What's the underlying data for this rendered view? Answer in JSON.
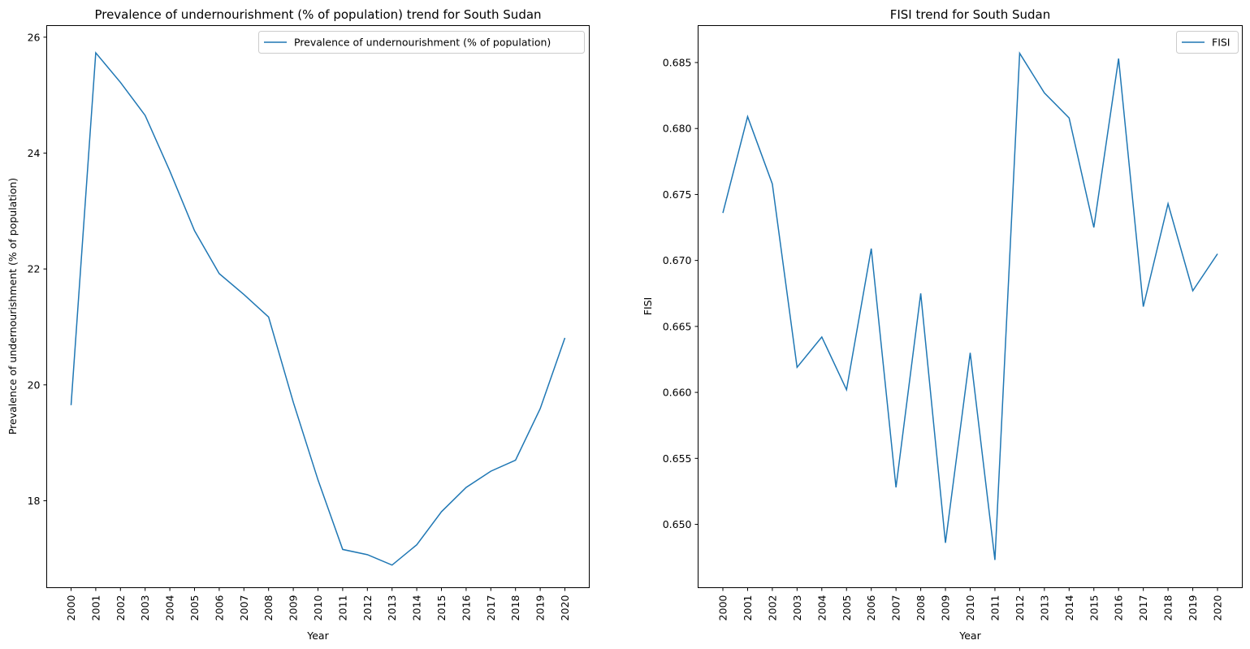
{
  "chart_data": [
    {
      "type": "line",
      "title": "Prevalence of undernourishment (% of population) trend for South Sudan",
      "xlabel": "Year",
      "ylabel": "Prevalence of undernourishment (% of population)",
      "x": [
        "2000",
        "2001",
        "2002",
        "2003",
        "2004",
        "2005",
        "2006",
        "2007",
        "2008",
        "2009",
        "2010",
        "2011",
        "2012",
        "2013",
        "2014",
        "2015",
        "2016",
        "2017",
        "2018",
        "2019",
        "2020"
      ],
      "series": [
        {
          "name": "Prevalence of undernourishment (% of population)",
          "color": "#1f77b4",
          "values": [
            19.65,
            25.73,
            25.22,
            24.65,
            23.69,
            22.66,
            21.92,
            21.56,
            21.17,
            19.7,
            18.36,
            17.16,
            17.07,
            16.89,
            17.24,
            17.81,
            18.23,
            18.51,
            18.7,
            19.59,
            20.81
          ]
        }
      ],
      "ylim": [
        16.5,
        26.2
      ],
      "yticks": [
        18,
        20,
        22,
        24,
        26
      ],
      "legend": "upper right",
      "grid": false
    },
    {
      "type": "line",
      "title": "FISI trend for South Sudan",
      "xlabel": "Year",
      "ylabel": "FISI",
      "x": [
        "2000",
        "2001",
        "2002",
        "2003",
        "2004",
        "2005",
        "2006",
        "2007",
        "2008",
        "2009",
        "2010",
        "2011",
        "2012",
        "2013",
        "2014",
        "2015",
        "2016",
        "2017",
        "2018",
        "2019",
        "2020"
      ],
      "series": [
        {
          "name": "FISI",
          "color": "#1f77b4",
          "values": [
            0.6736,
            0.6809,
            0.6758,
            0.6619,
            0.6642,
            0.6602,
            0.6709,
            0.6528,
            0.6675,
            0.6486,
            0.663,
            0.6473,
            0.6857,
            0.6827,
            0.6808,
            0.6725,
            0.6853,
            0.6665,
            0.6743,
            0.6677,
            0.6705
          ]
        }
      ],
      "ylim": [
        0.6452,
        0.6878
      ],
      "yticks": [
        0.65,
        0.655,
        0.66,
        0.665,
        0.67,
        0.675,
        0.68,
        0.685
      ],
      "legend": "upper right",
      "grid": false
    }
  ]
}
